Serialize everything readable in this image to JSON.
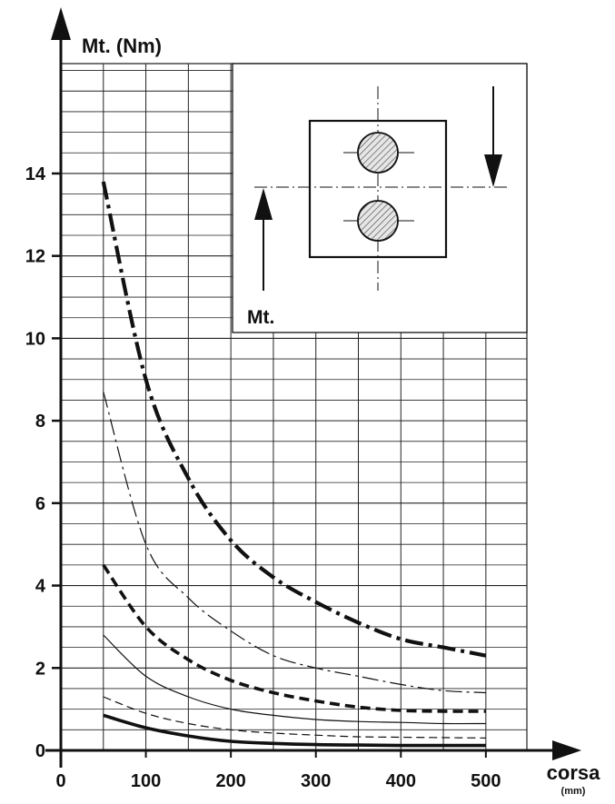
{
  "chart_data": {
    "type": "line",
    "ylabel": "Mt. (Nm)",
    "xlabel": "corsa",
    "xunit": "(mm)",
    "xlim": [
      0,
      500
    ],
    "ylim": [
      0,
      14
    ],
    "x_ticks": [
      "0",
      "100",
      "200",
      "300",
      "400",
      "500"
    ],
    "y_ticks": [
      "0",
      "2",
      "4",
      "6",
      "8",
      "10",
      "12",
      "14"
    ],
    "grid": true,
    "inset_label": "Mt.",
    "series": [
      {
        "style": "thick-dash-dot",
        "x": [
          50,
          100,
          150,
          200,
          250,
          300,
          350,
          400,
          450,
          500
        ],
        "y": [
          13.8,
          9.0,
          6.6,
          5.1,
          4.2,
          3.6,
          3.1,
          2.7,
          2.5,
          2.3
        ]
      },
      {
        "style": "thin-dash-dot",
        "x": [
          50,
          100,
          150,
          200,
          250,
          300,
          350,
          400,
          450,
          500
        ],
        "y": [
          8.7,
          5.0,
          3.7,
          2.9,
          2.3,
          2.0,
          1.8,
          1.6,
          1.45,
          1.4
        ]
      },
      {
        "style": "thick-dashed",
        "x": [
          50,
          100,
          150,
          200,
          250,
          300,
          350,
          400,
          450,
          500
        ],
        "y": [
          4.5,
          3.0,
          2.2,
          1.7,
          1.4,
          1.2,
          1.05,
          0.97,
          0.95,
          0.95
        ]
      },
      {
        "style": "thin-solid",
        "x": [
          50,
          100,
          150,
          200,
          250,
          300,
          350,
          400,
          450,
          500
        ],
        "y": [
          2.8,
          1.8,
          1.3,
          1.0,
          0.85,
          0.75,
          0.7,
          0.68,
          0.65,
          0.65
        ]
      },
      {
        "style": "thin-dashed",
        "x": [
          50,
          100,
          150,
          200,
          250,
          300,
          350,
          400,
          450,
          500
        ],
        "y": [
          1.3,
          0.9,
          0.65,
          0.5,
          0.42,
          0.37,
          0.33,
          0.32,
          0.31,
          0.3
        ]
      },
      {
        "style": "thick-solid",
        "x": [
          50,
          100,
          150,
          200,
          250,
          300,
          350,
          400,
          450,
          500
        ],
        "y": [
          0.85,
          0.55,
          0.35,
          0.22,
          0.17,
          0.14,
          0.13,
          0.12,
          0.12,
          0.12
        ]
      }
    ],
    "colors": {
      "ink": "#111111",
      "grid": "#222222",
      "hatch": "#999999",
      "background": "#ffffff"
    }
  }
}
